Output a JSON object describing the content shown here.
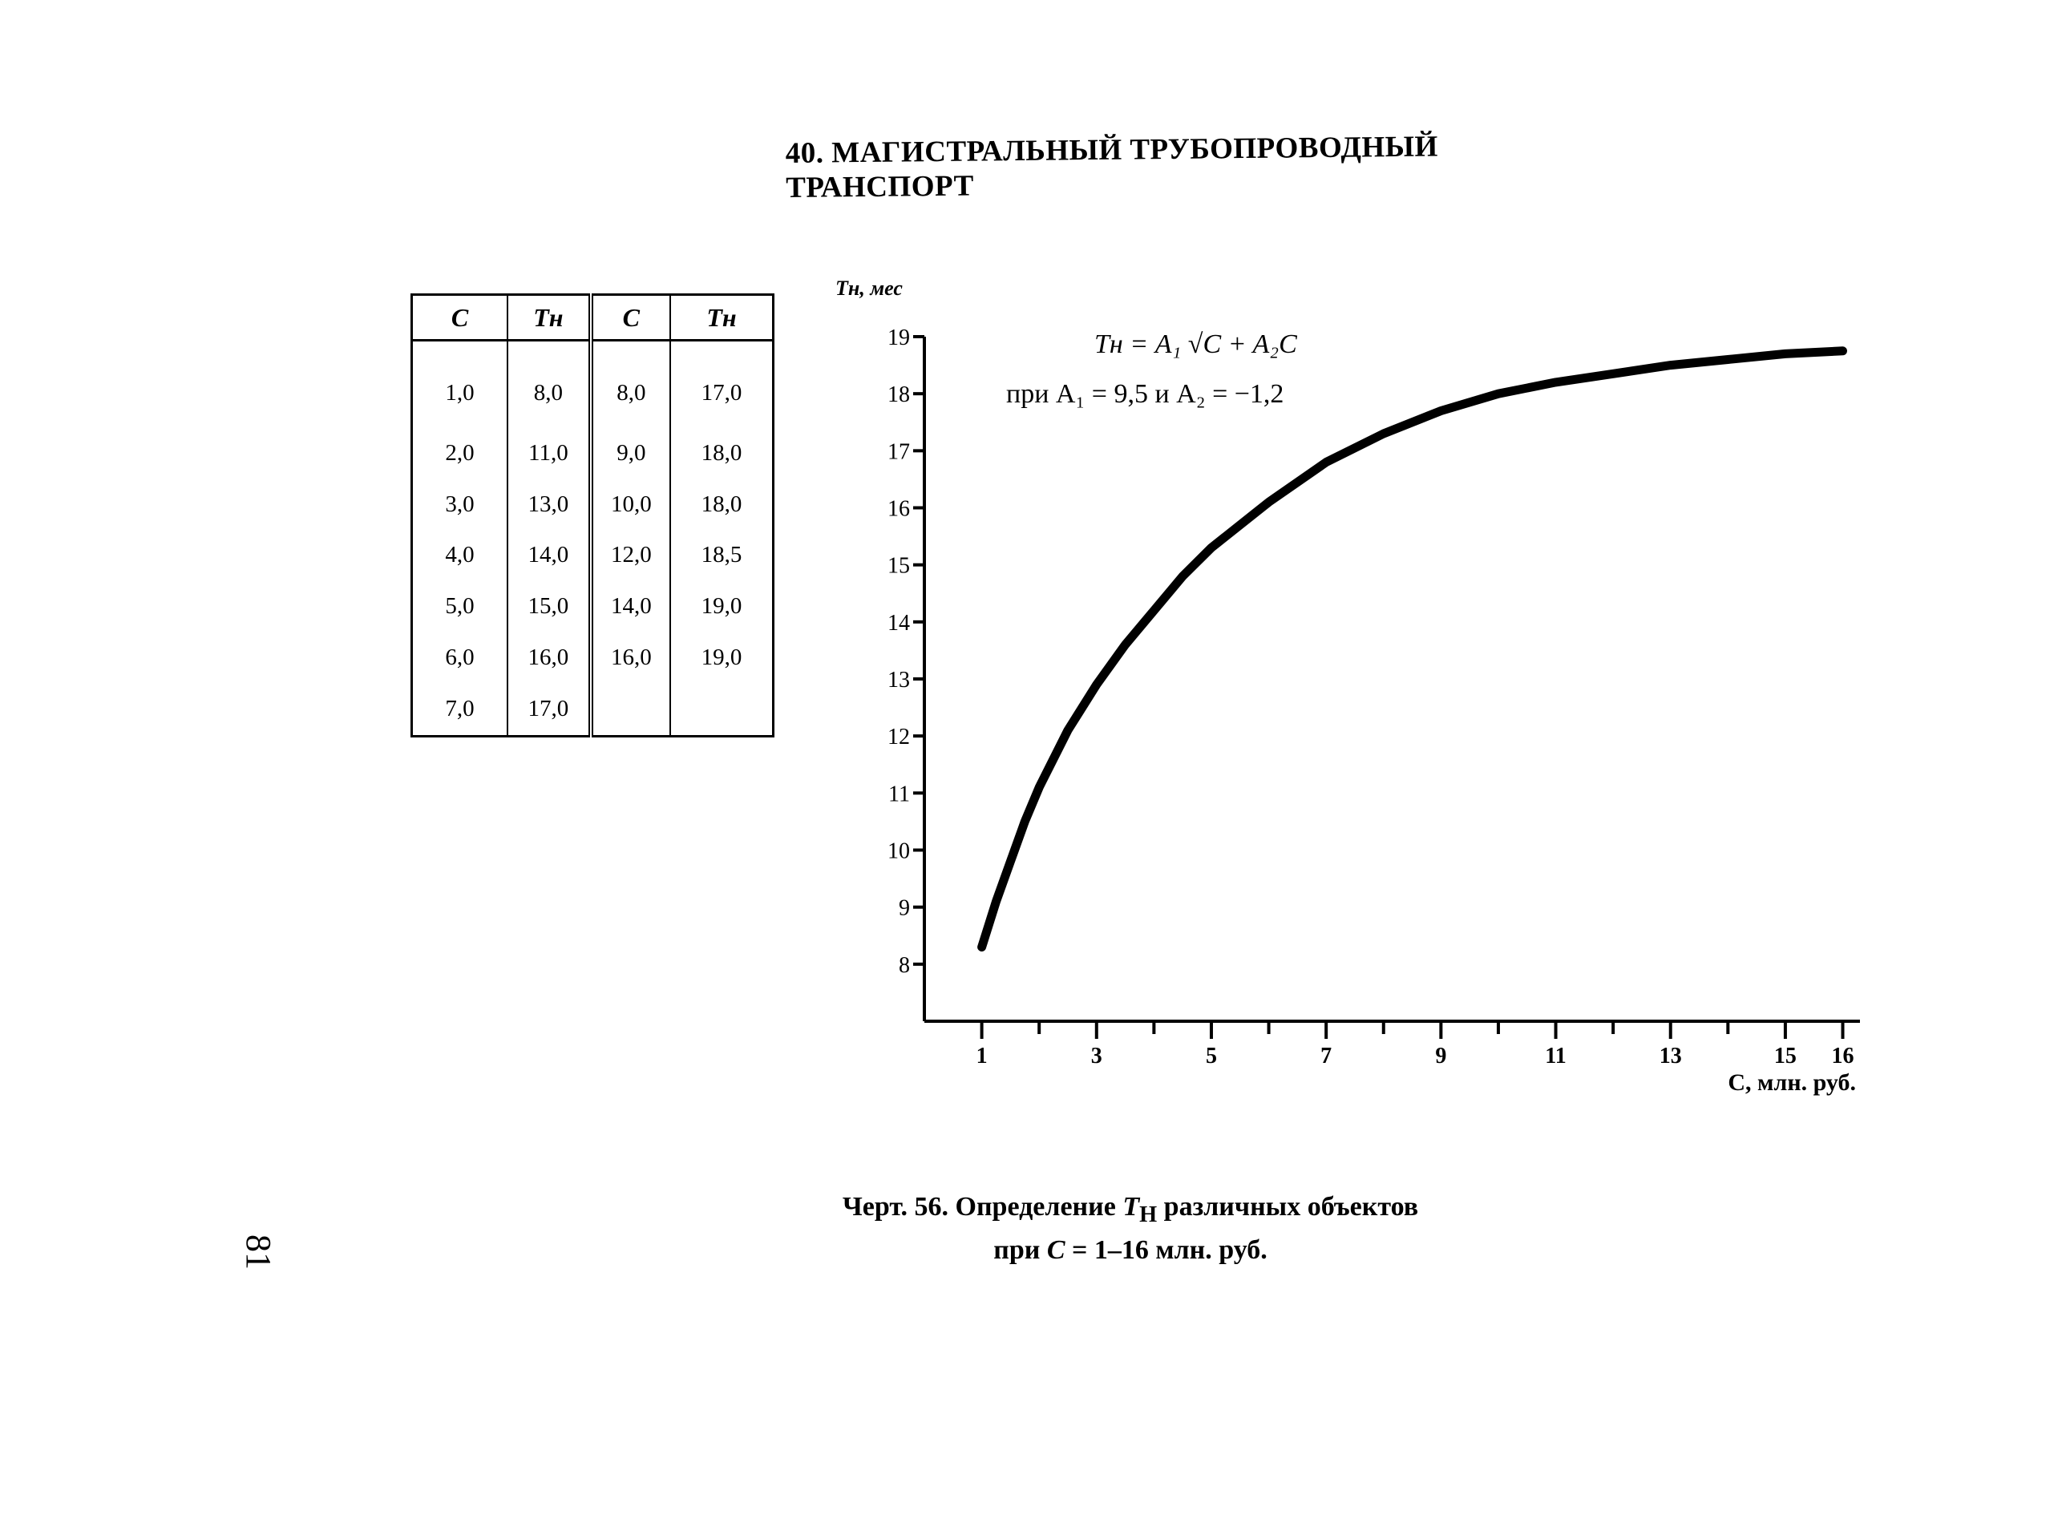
{
  "header": {
    "title": "40. МАГИСТРАЛЬНЫЙ ТРУБОПРОВОДНЫЙ ТРАНСПОРТ"
  },
  "table": {
    "headers": [
      "C",
      "Tн",
      "C",
      "Tн"
    ],
    "rows": [
      [
        "1,0",
        "8,0",
        "8,0",
        "17,0"
      ],
      [
        "2,0",
        "11,0",
        "9,0",
        "18,0"
      ],
      [
        "3,0",
        "13,0",
        "10,0",
        "18,0"
      ],
      [
        "4,0",
        "14,0",
        "12,0",
        "18,5"
      ],
      [
        "5,0",
        "15,0",
        "14,0",
        "19,0"
      ],
      [
        "6,0",
        "16,0",
        "16,0",
        "19,0"
      ],
      [
        "7,0",
        "17,0",
        "",
        ""
      ]
    ]
  },
  "chart_data": {
    "type": "line",
    "ylabel": "Tн, мес",
    "xlabel": "C, млн. руб.",
    "formula_line1": "Tн = A₁ √C + A₂C",
    "formula_line2": "при A₁ = 9,5 и A₂ = −1,2",
    "xlim": [
      0,
      16.3
    ],
    "ylim": [
      7,
      19
    ],
    "x_ticks": [
      1,
      3,
      5,
      7,
      9,
      11,
      13,
      15,
      16
    ],
    "y_ticks": [
      8,
      9,
      10,
      11,
      12,
      13,
      14,
      15,
      16,
      17,
      18,
      19
    ],
    "grid": false,
    "legend": "none",
    "series": [
      {
        "x": [
          1,
          1.25,
          1.5,
          1.75,
          2,
          2.5,
          3,
          3.5,
          4,
          4.5,
          5,
          6,
          7,
          8,
          9,
          10,
          11,
          12,
          13,
          14,
          15,
          16
        ],
        "y": [
          8.3,
          9.1,
          9.8,
          10.5,
          11.1,
          12.1,
          12.9,
          13.6,
          14.2,
          14.8,
          15.3,
          16.1,
          16.8,
          17.3,
          17.7,
          18.0,
          18.2,
          18.35,
          18.5,
          18.6,
          18.7,
          18.75
        ]
      }
    ]
  },
  "caption": {
    "line1_prefix": "Черт. 56. Определение ",
    "line1_symbol": "T",
    "line1_subscript": "Н",
    "line1_suffix": " различных объектов",
    "line2_prefix": "при ",
    "line2_symbol": "C",
    "line2_suffix": " = 1–16 млн. руб."
  },
  "page_number": "81"
}
